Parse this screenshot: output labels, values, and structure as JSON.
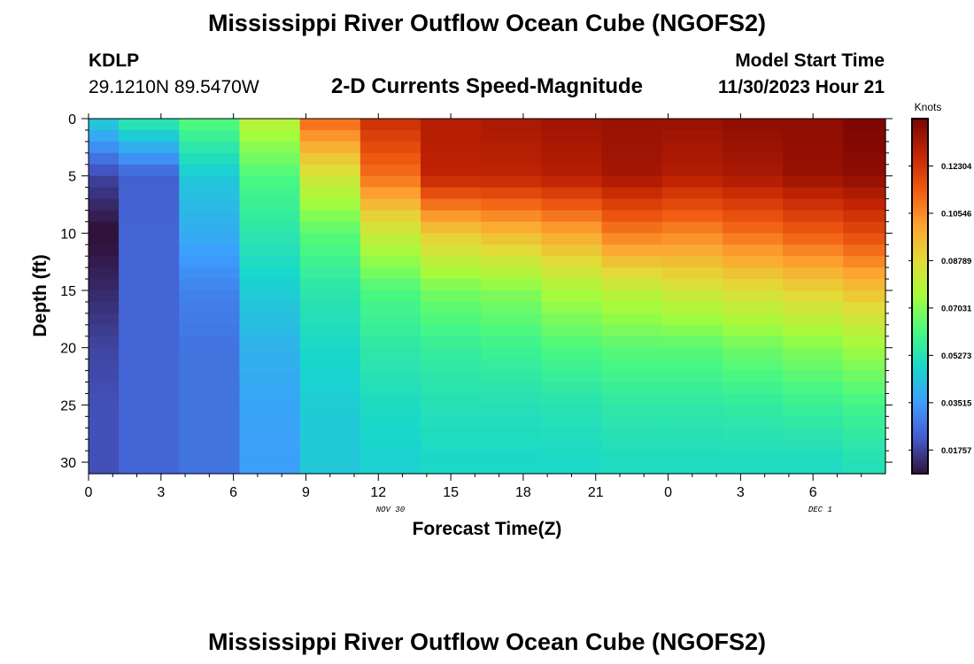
{
  "title": "Mississippi River Outflow Ocean Cube (NGOFS2)",
  "title_repeat": "Mississippi River Outflow Ocean Cube (NGOFS2)",
  "station": {
    "id": "KDLP",
    "coords": "29.1210N  89.5470W"
  },
  "model_start": {
    "label": "Model Start Time",
    "value": "11/30/2023 Hour 21"
  },
  "chart_data": {
    "type": "heatmap",
    "title": "2-D Currents Speed-Magnitude",
    "xlabel": "Forecast Time(Z)",
    "ylabel": "Depth (ft)",
    "x_ticks": [
      "0",
      "3",
      "6",
      "9",
      "12",
      "15",
      "18",
      "21",
      "0",
      "3",
      "6"
    ],
    "x_range": [
      0,
      33
    ],
    "y_ticks": [
      "0",
      "5",
      "10",
      "15",
      "20",
      "25",
      "30"
    ],
    "y_tick_values": [
      0,
      5,
      10,
      15,
      20,
      25,
      30
    ],
    "y_range": [
      0,
      31
    ],
    "date_labels": [
      {
        "text": "NOV 30",
        "x": 12.5
      },
      {
        "text": "DEC 1",
        "x": 30.3
      }
    ],
    "column_times": [
      0,
      2.5,
      5,
      7.5,
      10,
      12.5,
      15,
      17.5,
      20,
      22.5,
      25,
      27.5,
      30,
      32.5
    ],
    "depth_levels": [
      0,
      5,
      10,
      15,
      20,
      25,
      30,
      31
    ],
    "units": "Knots",
    "colorbar": {
      "ticks": [
        "0.01757",
        "0.03515",
        "0.05273",
        "0.07031",
        "0.08789",
        "0.10546",
        "0.12304"
      ],
      "range": [
        0.0088,
        0.1406
      ]
    },
    "values": [
      [
        0.047,
        0.018,
        0.008,
        0.013,
        0.018,
        0.02,
        0.02,
        0.02
      ],
      [
        0.056,
        0.023,
        0.024,
        0.024,
        0.024,
        0.024,
        0.024,
        0.024
      ],
      [
        0.064,
        0.045,
        0.039,
        0.03,
        0.027,
        0.027,
        0.027,
        0.027
      ],
      [
        0.08,
        0.062,
        0.054,
        0.046,
        0.04,
        0.037,
        0.036,
        0.036
      ],
      [
        0.112,
        0.084,
        0.064,
        0.054,
        0.049,
        0.046,
        0.045,
        0.045
      ],
      [
        0.125,
        0.11,
        0.082,
        0.062,
        0.055,
        0.05,
        0.047,
        0.047
      ],
      [
        0.13,
        0.128,
        0.092,
        0.068,
        0.057,
        0.052,
        0.049,
        0.049
      ],
      [
        0.132,
        0.128,
        0.096,
        0.07,
        0.059,
        0.052,
        0.049,
        0.049
      ],
      [
        0.134,
        0.13,
        0.1,
        0.076,
        0.062,
        0.053,
        0.049,
        0.049
      ],
      [
        0.135,
        0.133,
        0.108,
        0.08,
        0.064,
        0.055,
        0.05,
        0.05
      ],
      [
        0.135,
        0.13,
        0.106,
        0.084,
        0.064,
        0.055,
        0.05,
        0.05
      ],
      [
        0.137,
        0.132,
        0.11,
        0.087,
        0.067,
        0.056,
        0.05,
        0.05
      ],
      [
        0.137,
        0.135,
        0.114,
        0.09,
        0.07,
        0.058,
        0.05,
        0.05
      ],
      [
        0.14,
        0.137,
        0.118,
        0.094,
        0.074,
        0.06,
        0.052,
        0.052
      ]
    ]
  }
}
